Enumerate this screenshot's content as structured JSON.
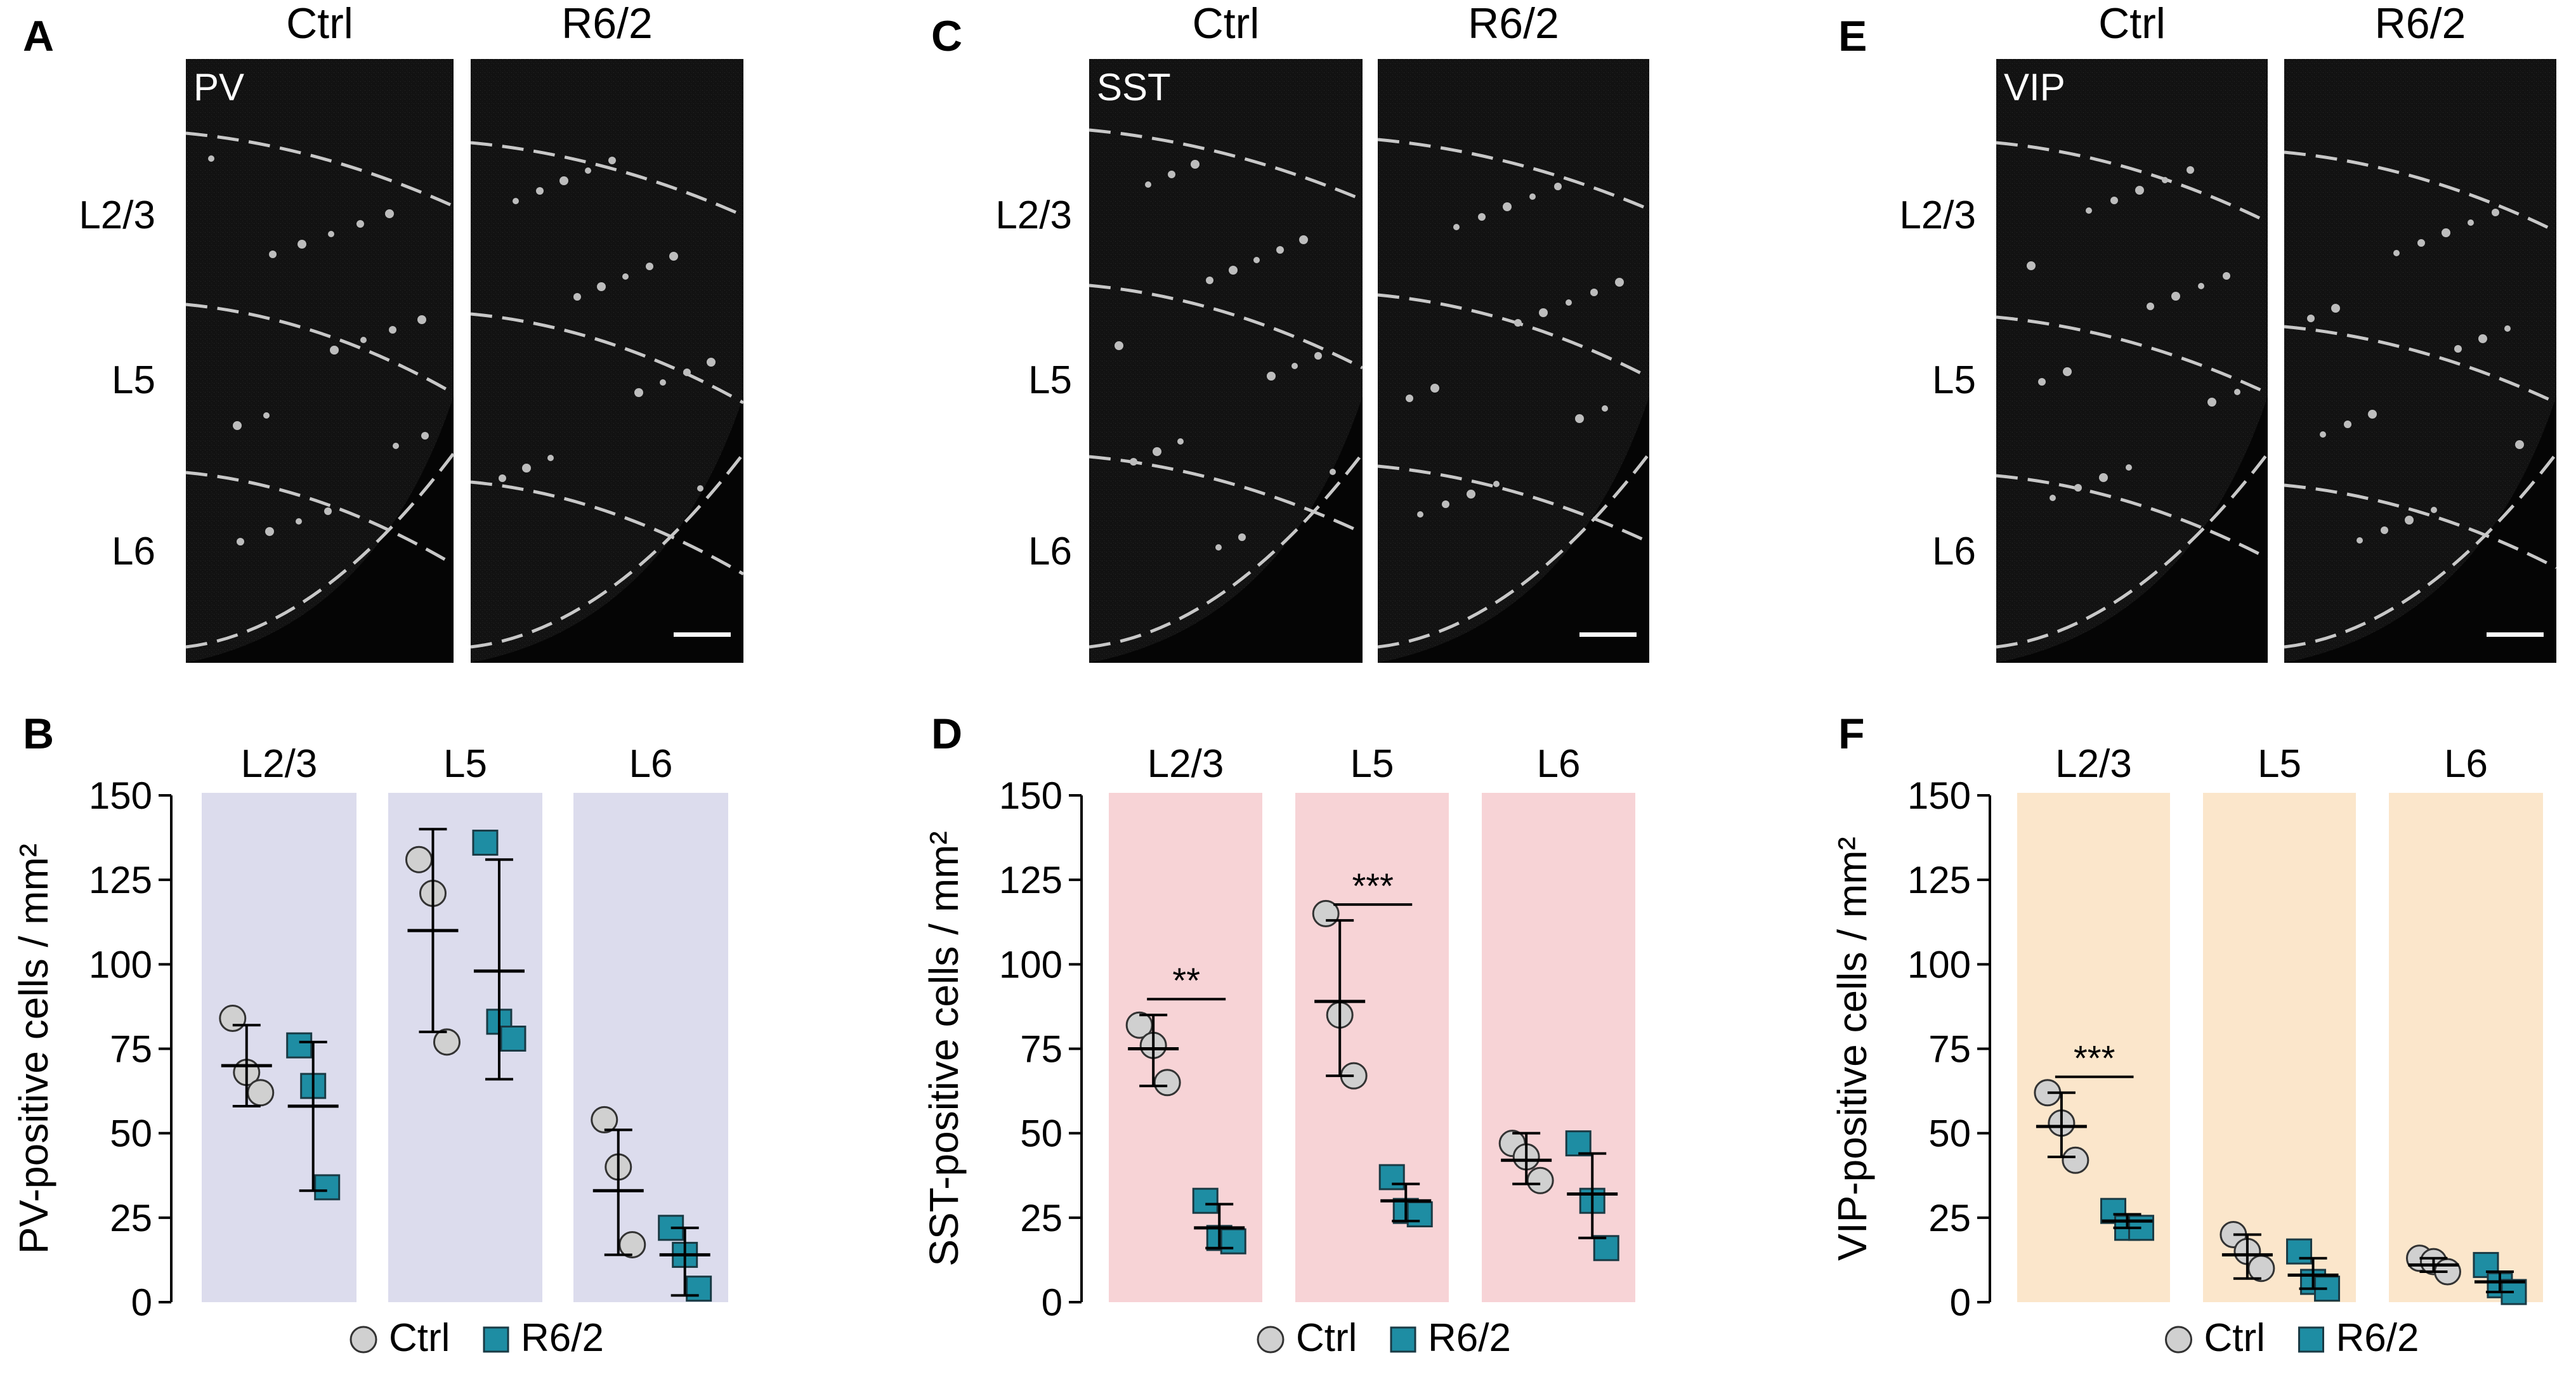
{
  "panels_images": [
    {
      "letter": "A",
      "marker": "PV",
      "cols": [
        "Ctrl",
        "R6/2"
      ],
      "layers": [
        "L2/3",
        "L5",
        "L6"
      ]
    },
    {
      "letter": "C",
      "marker": "SST",
      "cols": [
        "Ctrl",
        "R6/2"
      ],
      "layers": [
        "L2/3",
        "L5",
        "L6"
      ]
    },
    {
      "letter": "E",
      "marker": "VIP",
      "cols": [
        "Ctrl",
        "R6/2"
      ],
      "layers": [
        "L2/3",
        "L5",
        "L6"
      ]
    }
  ],
  "legend": {
    "ctrl": "Ctrl",
    "r62": "R6/2"
  },
  "colors": {
    "ctrl_marker": "#d0d0d0",
    "r62_marker": "#1e8da3",
    "pv_band": "#dcdced",
    "sst_band": "#f7d3d6",
    "vip_band": "#fbe6cb"
  },
  "chart_data": [
    {
      "letter": "B",
      "type": "scatter",
      "ylabel": "PV-positive cells / mm²",
      "ylim": [
        0,
        150
      ],
      "yticks": [
        0,
        25,
        50,
        75,
        100,
        125,
        150
      ],
      "categories": [
        "L2/3",
        "L5",
        "L6"
      ],
      "series": [
        {
          "name": "Ctrl",
          "points": [
            [
              84,
              68,
              62
            ],
            [
              131,
              121,
              77
            ],
            [
              54,
              40,
              17
            ]
          ],
          "mean": [
            70,
            110,
            33
          ],
          "err_low": [
            58,
            80,
            14
          ],
          "err_high": [
            82,
            140,
            51
          ],
          "sig": [
            "",
            "",
            ""
          ]
        },
        {
          "name": "R6/2",
          "points": [
            [
              76,
              64,
              34
            ],
            [
              136,
              83,
              78
            ],
            [
              22,
              14,
              4
            ]
          ],
          "mean": [
            58,
            98,
            14
          ],
          "err_low": [
            33,
            66,
            2
          ],
          "err_high": [
            77,
            131,
            22
          ]
        }
      ]
    },
    {
      "letter": "D",
      "type": "scatter",
      "ylabel": "SST-positive cells / mm²",
      "ylim": [
        0,
        150
      ],
      "yticks": [
        0,
        25,
        50,
        75,
        100,
        125,
        150
      ],
      "categories": [
        "L2/3",
        "L5",
        "L6"
      ],
      "series": [
        {
          "name": "Ctrl",
          "points": [
            [
              82,
              76,
              65
            ],
            [
              115,
              85,
              67
            ],
            [
              47,
              43,
              36
            ]
          ],
          "mean": [
            75,
            89,
            42
          ],
          "err_low": [
            64,
            67,
            35
          ],
          "err_high": [
            85,
            113,
            50
          ],
          "sig": [
            "**",
            "***",
            ""
          ]
        },
        {
          "name": "R6/2",
          "points": [
            [
              30,
              19,
              18
            ],
            [
              37,
              27,
              26
            ],
            [
              47,
              30,
              16
            ]
          ],
          "mean": [
            22,
            30,
            32
          ],
          "err_low": [
            16,
            24,
            19
          ],
          "err_high": [
            29,
            35,
            44
          ]
        }
      ]
    },
    {
      "letter": "F",
      "type": "scatter",
      "ylabel": "VIP-positive cells / mm²",
      "ylim": [
        0,
        150
      ],
      "yticks": [
        0,
        25,
        50,
        75,
        100,
        125,
        150
      ],
      "categories": [
        "L2/3",
        "L5",
        "L6"
      ],
      "series": [
        {
          "name": "Ctrl",
          "points": [
            [
              62,
              53,
              42
            ],
            [
              20,
              15,
              10
            ],
            [
              13,
              12,
              9
            ]
          ],
          "mean": [
            52,
            14,
            11
          ],
          "err_low": [
            43,
            7,
            9
          ],
          "err_high": [
            62,
            20,
            13
          ],
          "sig": [
            "***",
            "",
            ""
          ]
        },
        {
          "name": "R6/2",
          "points": [
            [
              27,
              22,
              22
            ],
            [
              15,
              6,
              4
            ],
            [
              11,
              5,
              3
            ]
          ],
          "mean": [
            24,
            8,
            6
          ],
          "err_low": [
            22,
            4,
            3
          ],
          "err_high": [
            26,
            13,
            9
          ]
        }
      ]
    }
  ]
}
